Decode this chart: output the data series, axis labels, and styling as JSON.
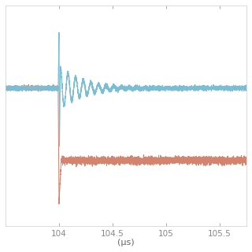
{
  "xlim": [
    103.5,
    105.75
  ],
  "xlabel": "(μs)",
  "background_color": "#ffffff",
  "voltage_color": "#7bbdd4",
  "current_color": "#d4846e",
  "v_pre": 0.72,
  "v_post": 0.72,
  "v_osc_amp": 0.12,
  "v_osc_freq": 14.0,
  "v_osc_decay": 4.5,
  "v_spike_peak": 1.05,
  "v_spike_valley": 0.38,
  "c_pre": 0.72,
  "c_post": 0.3,
  "c_noise": 0.01,
  "v_noise": 0.006,
  "edge_time": 104.0,
  "line_width": 0.75
}
